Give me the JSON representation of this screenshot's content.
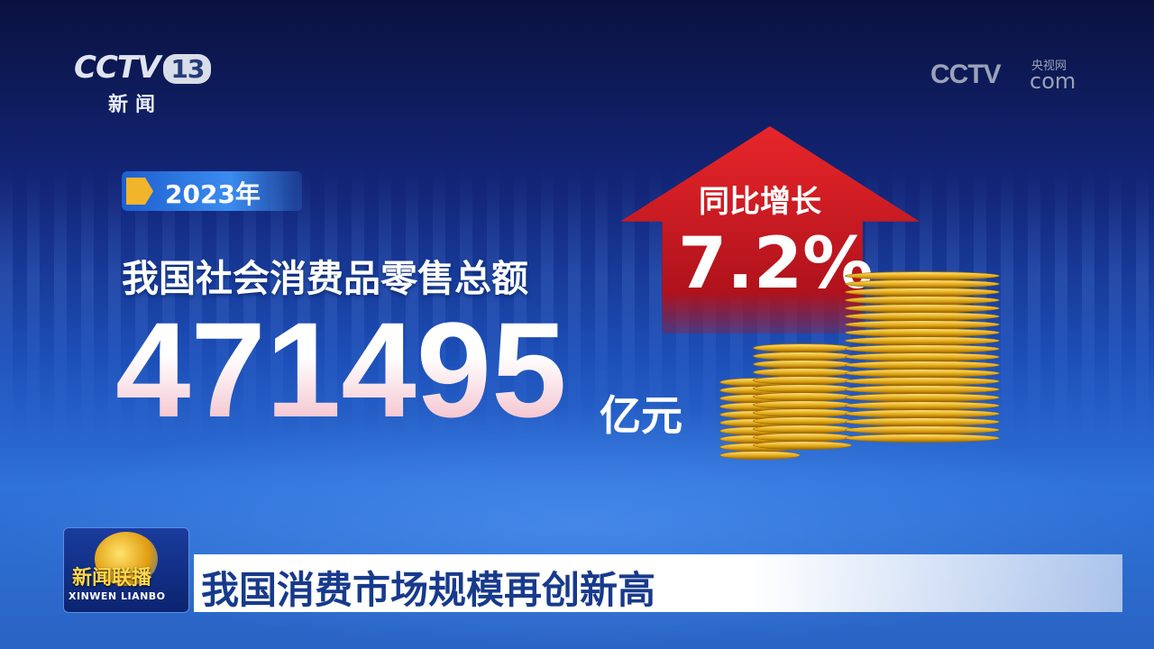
{
  "channel_logo": {
    "brand": "CCTV",
    "channel": "13",
    "subtitle": "新闻"
  },
  "watermark": {
    "brand": "CCTV",
    "cn": "央视网",
    "domain": "com"
  },
  "infographic": {
    "year": "2023年",
    "title": "我国社会消费品零售总额",
    "value": "471495",
    "unit": "亿元",
    "growth_label": "同比增长",
    "growth_value": "7.2%",
    "arrow_color": "#e02428"
  },
  "program": {
    "name_cn": "新闻联播",
    "name_en": "XINWEN  LIANBO"
  },
  "headline": "我国消费市场规模再创新高"
}
